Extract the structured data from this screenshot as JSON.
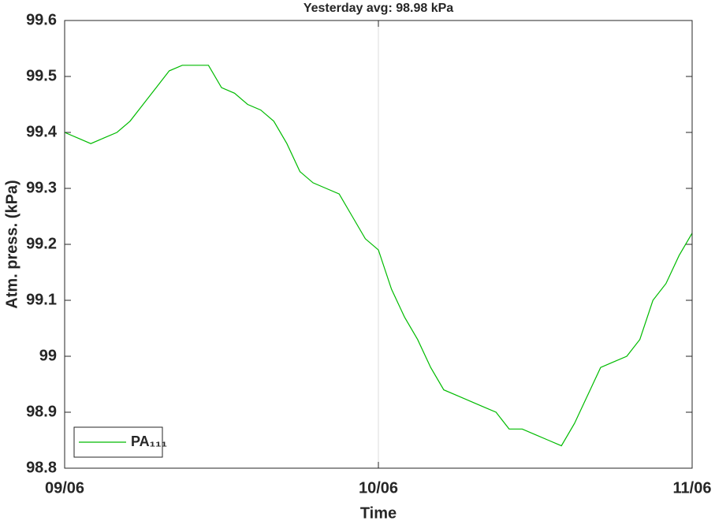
{
  "chart_data": {
    "type": "line",
    "title": "Yesterday avg: 98.98 kPa",
    "x_label": "Time",
    "y_label": "Atm. press. (kPa)",
    "x": [
      0,
      1,
      2,
      3,
      4,
      5,
      6,
      7,
      8,
      9,
      10,
      11,
      12,
      13,
      14,
      15,
      16,
      17,
      18,
      19,
      20,
      21,
      22,
      23,
      24,
      25,
      26,
      27,
      28,
      29,
      30,
      31,
      32,
      33,
      34,
      35,
      36,
      37,
      38,
      39,
      40,
      41,
      42,
      43,
      44,
      45,
      46,
      47,
      48
    ],
    "series": [
      {
        "name": "PA₁₁₁",
        "color": "#00bb00",
        "values": [
          99.4,
          99.39,
          99.38,
          99.39,
          99.4,
          99.42,
          99.45,
          99.48,
          99.51,
          99.52,
          99.52,
          99.52,
          99.48,
          99.47,
          99.45,
          99.44,
          99.42,
          99.38,
          99.33,
          99.31,
          99.3,
          99.29,
          99.25,
          99.21,
          99.19,
          99.12,
          99.07,
          99.03,
          98.98,
          98.94,
          98.93,
          98.92,
          98.91,
          98.9,
          98.87,
          98.87,
          98.86,
          98.85,
          98.84,
          98.88,
          98.93,
          98.98,
          98.99,
          99.0,
          99.03,
          99.1,
          99.13,
          99.18,
          99.22
        ]
      }
    ],
    "xlim": [
      0,
      48
    ],
    "xticks": [
      {
        "value": 0,
        "label": "09/06"
      },
      {
        "value": 24,
        "label": "10/06"
      },
      {
        "value": 48,
        "label": "11/06"
      }
    ],
    "ylim": [
      98.8,
      99.6
    ],
    "yticks": [
      98.8,
      98.9,
      99,
      99.1,
      99.2,
      99.3,
      99.4,
      99.5,
      99.6
    ],
    "xgrid": true,
    "legend": "lower left"
  }
}
